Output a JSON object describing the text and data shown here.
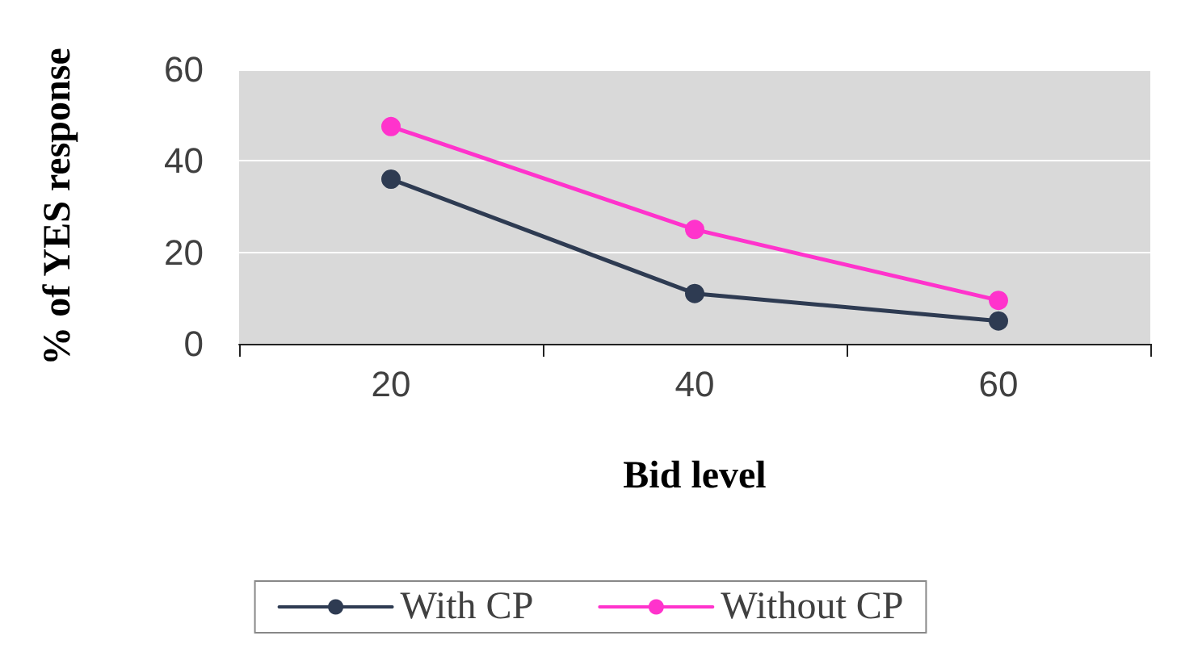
{
  "chart_data": {
    "type": "line",
    "xlabel": "Bid level",
    "ylabel": "% of YES response",
    "categories": [
      "20",
      "40",
      "60"
    ],
    "series": [
      {
        "name": "With CP",
        "color": "#2e3b52",
        "values": [
          36,
          11,
          5
        ]
      },
      {
        "name": "Without CP",
        "color": "#ff33cc",
        "values": [
          47.5,
          25,
          9.5
        ]
      }
    ],
    "ylim": [
      0,
      60
    ],
    "yticks": [
      0,
      20,
      40,
      60
    ],
    "grid": "y",
    "legend": "bottom",
    "marker": "circle",
    "line_style": "solid"
  }
}
